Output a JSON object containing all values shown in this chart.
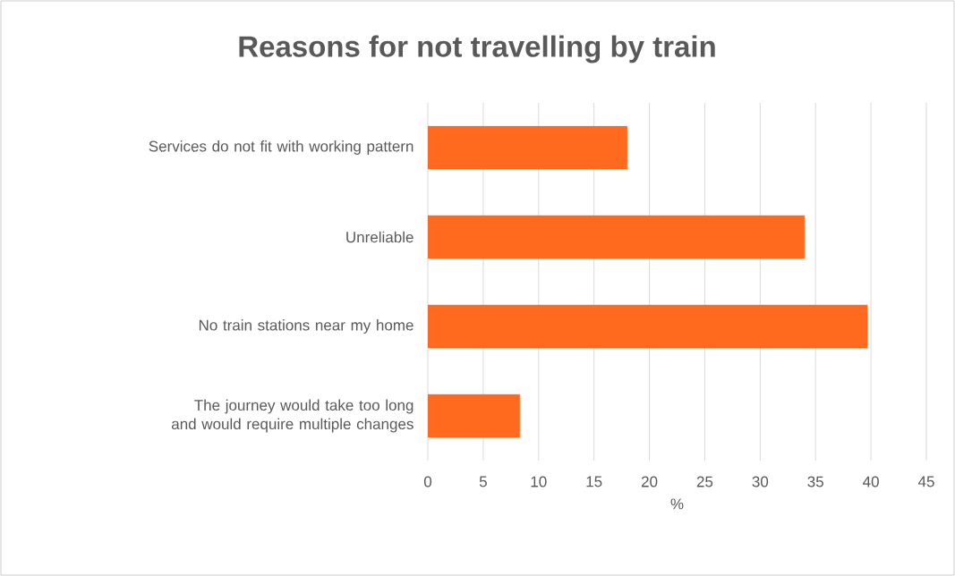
{
  "chart_data": {
    "type": "bar",
    "orientation": "horizontal",
    "title": "Reasons for not travelling by train",
    "xlabel": "%",
    "categories": [
      "Services do not fit with working pattern",
      "Unreliable",
      "No train stations near my home",
      "The journey would take too long and would require multiple changes"
    ],
    "values": [
      18,
      34,
      39.7,
      8.3
    ],
    "color": "#ff6a1f",
    "xlim": [
      0,
      45
    ],
    "xticks": [
      0,
      5,
      10,
      15,
      20,
      25,
      30,
      35,
      40,
      45
    ],
    "grid": "x"
  }
}
